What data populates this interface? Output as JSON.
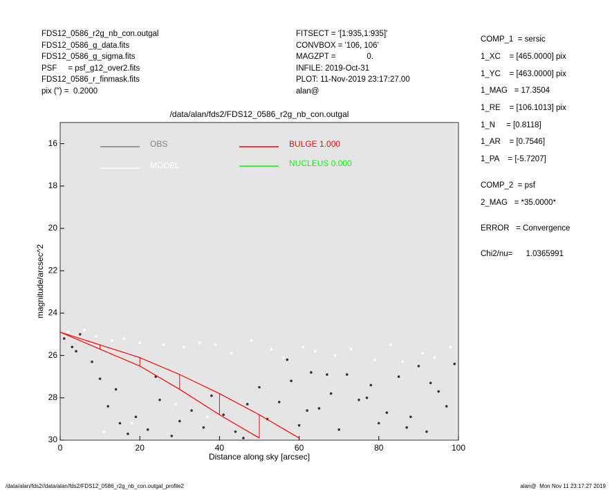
{
  "header": {
    "left": [
      "FDS12_0586_r2g_nb_con.outgal",
      "FDS12_0586_g_data.fits",
      "FDS12_0586_g_sigma.fits",
      "PSF     = psf_g12_over2.fits",
      "FDS12_0586_r_finmask.fits",
      "pix (\") =  0.2000"
    ],
    "middle": [
      "FITSECT = '[1:935,1:935]'",
      "CONVBOX = '106, 106'",
      "MAGZPT =              0.",
      "INFILE: 2019-Oct-31",
      "PLOT: 11-Nov-2019 23:17:27.00",
      "alan@"
    ],
    "right": [
      "COMP_1  = sersic",
      "1_XC    = [465.0000] pix",
      "1_YC    = [463.0000] pix",
      "1_MAG   = 17.3504",
      "1_RE    = [106.1013] pix",
      "1_N     = [0.8118]",
      "1_AR    = [0.7546]",
      "1_PA    = [-5.7207]",
      "COMP_2  = psf",
      "2_MAG   = *35.0000*",
      "ERROR   = Convergence",
      "Chi2/nu=      1.0365991"
    ]
  },
  "footer": {
    "left": "/data/alan/fds2//data/alan/fds2/FDS12_0586_r2g_nb_con.outgal_profile2",
    "right": "alan@  Mon Nov 11 23:17:27 2019"
  },
  "chart_data": {
    "type": "scatter",
    "title": "/data/alan/fds2/FDS12_0586_r2g_nb_con.outgal",
    "x_label": "Distance along sky [arcsec]",
    "y_label": "magnitude/arcsec^2",
    "xlim": [
      0,
      100
    ],
    "xticks": [
      0,
      20,
      40,
      60,
      80,
      100
    ],
    "ylim": [
      15,
      30
    ],
    "yticks": [
      16,
      18,
      20,
      22,
      24,
      26,
      28,
      30
    ],
    "y_inverted": true,
    "background": "#e5e5e5",
    "series": [
      {
        "name": "OBS",
        "color": "#7f7f7f",
        "x": [
          1,
          3,
          5,
          8,
          10,
          12,
          15,
          17,
          19,
          22,
          25,
          28,
          30,
          33,
          36,
          38,
          41,
          44,
          47,
          50,
          52,
          55,
          58,
          60,
          63,
          65,
          68,
          70,
          72,
          75,
          78,
          80,
          82,
          85,
          88,
          90,
          92,
          95,
          97,
          99,
          4,
          14,
          24,
          46,
          57,
          67,
          77,
          87,
          93,
          62
        ],
        "values": [
          25.2,
          25.6,
          25.0,
          26.3,
          27.1,
          28.4,
          29.2,
          29.7,
          28.9,
          29.5,
          28.1,
          29.8,
          29.1,
          28.6,
          29.4,
          27.9,
          28.8,
          29.6,
          28.3,
          27.5,
          29.0,
          28.2,
          27.2,
          29.3,
          26.8,
          28.5,
          27.8,
          29.5,
          26.9,
          28.1,
          27.4,
          29.2,
          28.7,
          27.0,
          28.9,
          26.5,
          29.6,
          27.7,
          28.4,
          26.4,
          25.8,
          27.6,
          27.0,
          29.9,
          26.2,
          26.9,
          28.0,
          29.4,
          27.3,
          28.6
        ]
      },
      {
        "name": "MODEL",
        "color": "#ffffff",
        "x": [
          2,
          6,
          9,
          13,
          16,
          20,
          26,
          31,
          35,
          39,
          43,
          48,
          53,
          56,
          61,
          64,
          69,
          73,
          79,
          83,
          86,
          91,
          94,
          98,
          11,
          18,
          29,
          37
        ],
        "values": [
          24.9,
          24.8,
          25.1,
          25.3,
          25.2,
          25.4,
          25.5,
          25.6,
          25.4,
          25.5,
          25.9,
          25.3,
          25.7,
          26.1,
          25.6,
          25.8,
          26.0,
          25.7,
          26.2,
          25.5,
          26.3,
          25.9,
          26.1,
          25.6,
          29.6,
          29.2,
          28.3,
          28.9
        ]
      },
      {
        "name": "BULGE  1.000",
        "color": "#ff0000",
        "x": [
          0,
          10,
          20,
          30,
          40,
          50,
          60
        ],
        "values": [
          24.9,
          25.5,
          26.1,
          26.9,
          27.8,
          28.8,
          29.9
        ],
        "lower": [
          24.9,
          25.7,
          26.5,
          27.6,
          28.8,
          29.9,
          null
        ]
      },
      {
        "name": "NUCLEUS  0.000",
        "color": "#00ff00"
      }
    ]
  }
}
